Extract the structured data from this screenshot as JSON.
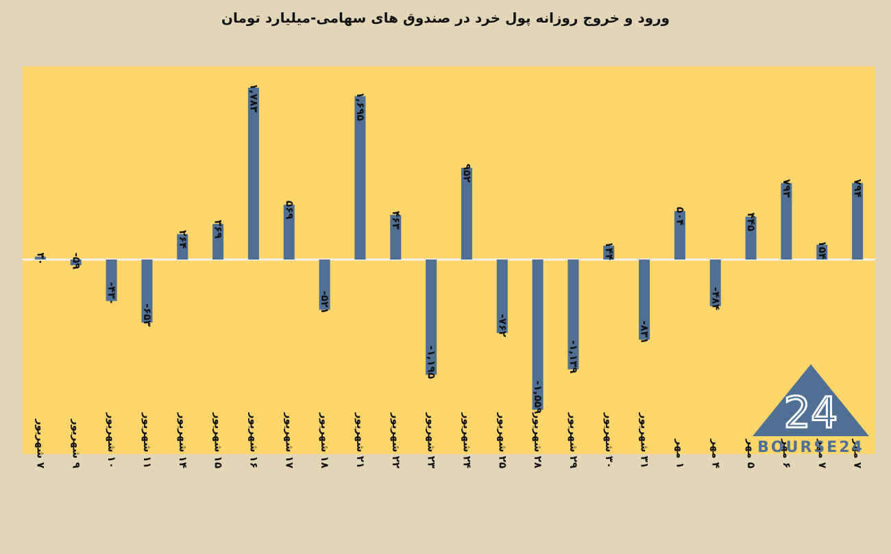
{
  "chart_data": {
    "type": "bar",
    "title": "ورود و خروج روزانه پول خرد در صندوق های سهامی-میلیارد تومان",
    "categories": [
      "۷ شهریور",
      "۹ شهریور",
      "۱۰ شهریور",
      "۱۱ شهریور",
      "۱۴ شهریور",
      "۱۵ شهریور",
      "۱۶ شهریور",
      "۱۷ شهریور",
      "۱۸ شهریور",
      "۲۱ شهریور",
      "۲۲ شهریور",
      "۲۳ شهریور",
      "۲۴ شهریور",
      "۲۵ شهریور",
      "۲۸ شهریور",
      "۲۹ شهریور",
      "۳۰ شهریور",
      "۳۱ شهریور",
      "۱ مهر",
      "۴ مهر",
      "۵ مهر",
      "۶ مهر",
      "۷ مهر",
      "۷ مهر"
    ],
    "values": [
      30,
      -59,
      -430,
      -653,
      264,
      369,
      1783,
      569,
      -521,
      1695,
      463,
      -1195,
      952,
      -762,
      -1559,
      -1139,
      144,
      -831,
      504,
      -484,
      445,
      793,
      154,
      794
    ],
    "value_labels": [
      "۳۰",
      "-۵۹",
      "-۴۳۰",
      "-۶۵۳",
      "۲۶۴",
      "۳۶۹",
      "۱,۷۸۳",
      "۵۶۹",
      "-۵۲۱",
      "۱,۶۹۵",
      "۴۶۳",
      "-۱,۱۹۵",
      "۹۵۲",
      "-۷۶۲",
      "-۱,۵۵۹",
      "-۱,۱۳۹",
      "۱۴۴",
      "-۸۳۱",
      "۵۰۴",
      "-۴۸۴",
      "۴۴۵",
      "۷۹۳",
      "۱۵۴",
      "۷۹۴"
    ],
    "ylim": [
      -2000,
      2000
    ],
    "xlabel": "",
    "ylabel": "",
    "grid": false,
    "bar_color": "#4f6f94",
    "plot_background": "#fcd56b",
    "page_background": "#e2d6b9"
  },
  "logo": {
    "text": "BOURSE24",
    "mark": "24",
    "icon": "bourse24-logo-triangle"
  }
}
